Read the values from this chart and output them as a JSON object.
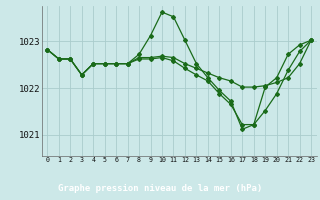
{
  "background_color": "#cce8e8",
  "grid_color": "#aacccc",
  "line_color": "#1a6b1a",
  "label_bg": "#4a7a5a",
  "title": "Graphe pression niveau de la mer (hPa)",
  "yticks": [
    1021,
    1022,
    1023
  ],
  "ylim": [
    1020.55,
    1023.75
  ],
  "xlim": [
    -0.5,
    23.5
  ],
  "series": [
    [
      1022.82,
      1022.62,
      1022.62,
      1022.28,
      1022.52,
      1022.52,
      1022.52,
      1022.52,
      1022.72,
      1023.12,
      1023.62,
      1023.52,
      1023.02,
      1022.52,
      1022.22,
      1021.95,
      1021.72,
      1021.12,
      1021.22,
      1022.02,
      1022.22,
      1022.72,
      1022.92,
      1023.02
    ],
    [
      1022.82,
      1022.62,
      1022.62,
      1022.28,
      1022.52,
      1022.52,
      1022.52,
      1022.52,
      1022.65,
      1022.65,
      1022.68,
      1022.65,
      1022.52,
      1022.42,
      1022.32,
      1022.22,
      1022.15,
      1022.02,
      1022.02,
      1022.05,
      1022.12,
      1022.22,
      1022.52,
      1023.02
    ],
    [
      1022.82,
      1022.62,
      1022.62,
      1022.28,
      1022.52,
      1022.52,
      1022.52,
      1022.52,
      1022.62,
      1022.62,
      1022.65,
      1022.58,
      1022.42,
      1022.28,
      1022.15,
      1021.88,
      1021.65,
      1021.22,
      1021.22,
      1021.52,
      1021.88,
      1022.38,
      1022.78,
      1023.02
    ]
  ]
}
